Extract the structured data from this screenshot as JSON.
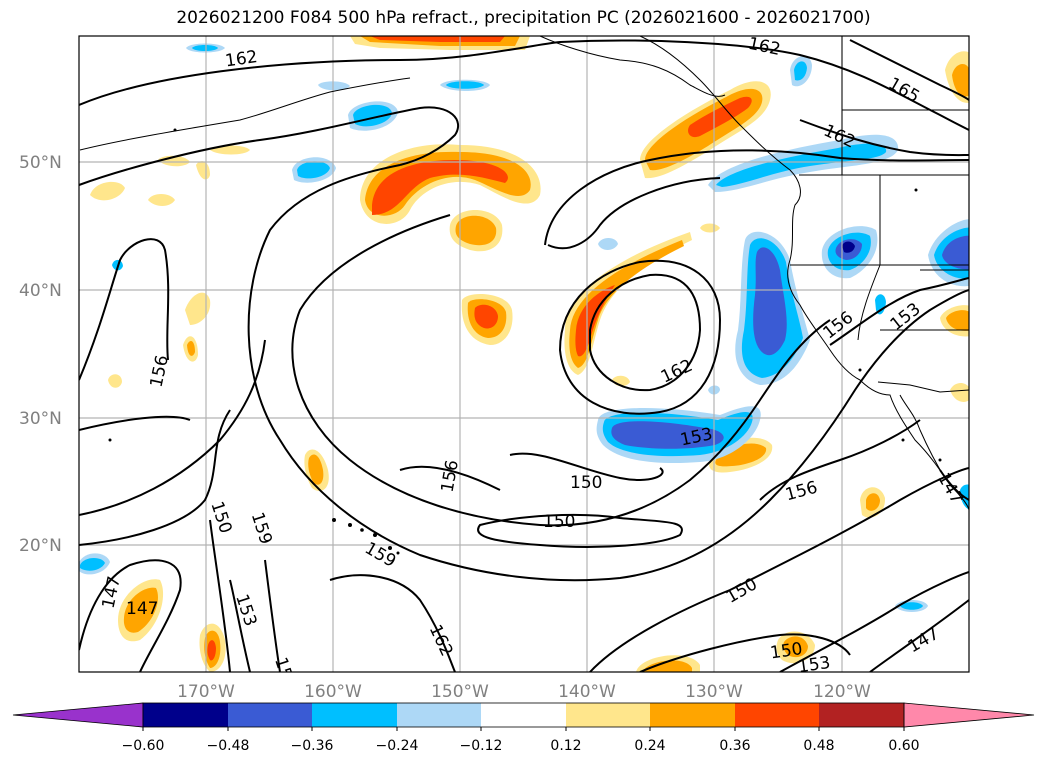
{
  "title": "2026021200 F084 500 hPa refract., precipitation PC (2026021600 - 2026021700)",
  "lat_labels": [
    "50°N",
    "40°N",
    "30°N",
    "20°N"
  ],
  "lon_labels": [
    "170°W",
    "160°W",
    "150°W",
    "140°W",
    "130°W",
    "120°W"
  ],
  "contour_labels": [
    "162",
    "162",
    "165",
    "162",
    "156",
    "153",
    "162",
    "156",
    "153",
    "150",
    "150",
    "156",
    "147",
    "156",
    "150",
    "159",
    "153",
    "159",
    "147",
    "162",
    "150",
    "150",
    "153",
    "147",
    "15",
    "147"
  ],
  "colorbar": {
    "ticks": [
      "−0.60",
      "−0.48",
      "−0.36",
      "−0.24",
      "−0.12",
      "0.12",
      "0.24",
      "0.36",
      "0.48",
      "0.60"
    ],
    "colors": [
      "#9932cc",
      "#00008b",
      "#3a5bd4",
      "#00bfff",
      "#add8f6",
      "#ffffff",
      "#ffe68c",
      "#ffa500",
      "#ff4500",
      "#b22222",
      "#ff88aa"
    ]
  },
  "shading_colors": {
    "pos_light": "#ffe68c",
    "pos_mid": "#ffa500",
    "pos_strong": "#ff4500",
    "neg_light": "#add8f6",
    "neg_mid": "#00bfff",
    "neg_strong": "#3a5bd4",
    "neg_max": "#00008b"
  }
}
